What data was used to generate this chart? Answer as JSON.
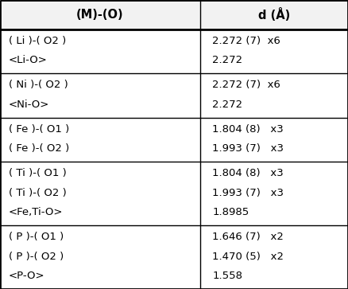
{
  "header": [
    "(M)-(O)",
    "d (Å)"
  ],
  "rows": [
    {
      "left": [
        "( Li )-( O2 )",
        "<Li-O>"
      ],
      "right": [
        "2.272 (7)  x6",
        "2.272"
      ]
    },
    {
      "left": [
        "( Ni )-( O2 )",
        "<Ni-O>"
      ],
      "right": [
        "2.272 (7)  x6",
        "2.272"
      ]
    },
    {
      "left": [
        "( Fe )-( O1 )",
        "( Fe )-( O2 )"
      ],
      "right": [
        "1.804 (8)   x3",
        "1.993 (7)   x3"
      ]
    },
    {
      "left": [
        "( Ti )-( O1 )",
        "( Ti )-( O2 )",
        "<Fe,Ti-O>"
      ],
      "right": [
        "1.804 (8)   x3",
        "1.993 (7)   x3",
        "1.8985"
      ]
    },
    {
      "left": [
        "( P )-( O1 )",
        "( P )-( O2 )",
        "<P-O>"
      ],
      "right": [
        "1.646 (7)   x2",
        "1.470 (5)   x2",
        "1.558"
      ]
    }
  ],
  "col_split": 0.575,
  "header_fontsize": 10.5,
  "body_fontsize": 9.5,
  "bg_color": "#ffffff",
  "border_color": "#000000",
  "header_bg": "#f2f2f2",
  "figwidth": 4.38,
  "figheight": 3.63,
  "dpi": 100
}
